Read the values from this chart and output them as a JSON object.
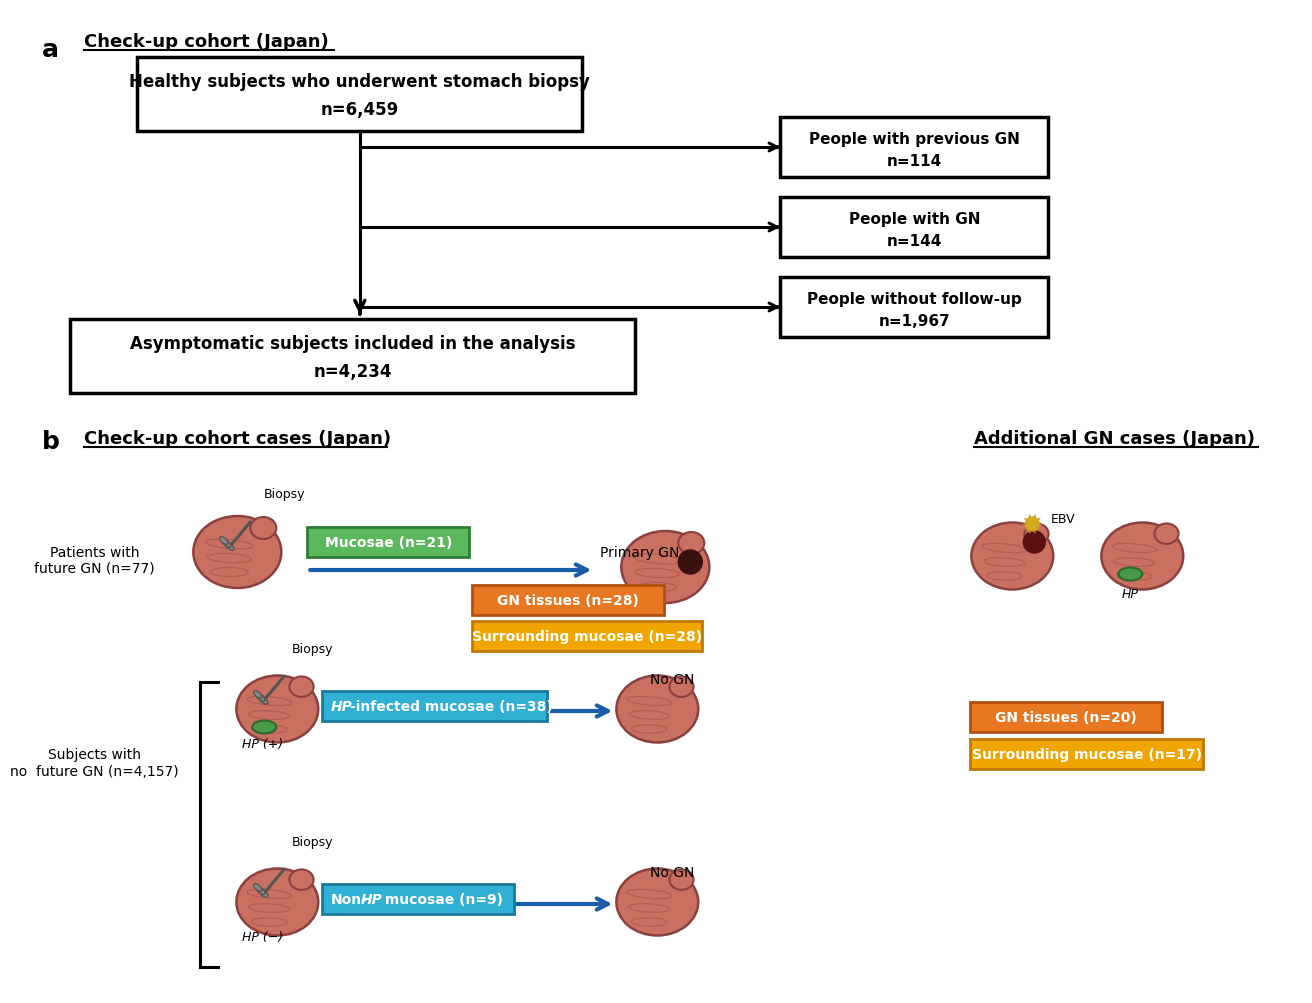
{
  "panel_a": {
    "label": "a",
    "title": "Check-up cohort (Japan)",
    "top_box_line1": "Healthy subjects who underwent stomach biopsy",
    "top_box_line2": "n=6,459",
    "bottom_box_line1": "Asymptomatic subjects included in the analysis",
    "bottom_box_line2": "n=4,234",
    "right_boxes": [
      [
        "People with previous GN",
        "n=114"
      ],
      [
        "People with GN",
        "n=144"
      ],
      [
        "People without follow-up",
        "n=1,967"
      ]
    ]
  },
  "panel_b": {
    "label": "b",
    "left_title": "Check-up cohort cases (Japan)",
    "right_title": "Additional GN cases (Japan)",
    "upper_label_line1": "Patients with",
    "upper_label_line2": "future GN (n=77)",
    "lower_label_line1": "Subjects with",
    "lower_label_line2": "no  future GN (n=4,157)",
    "mucosae_text": "Mucosae (n=21)",
    "mucosae_color": "#5cb85c",
    "mucosae_ec": "#2e7d32",
    "gn28_text": "GN tissues (n=28)",
    "gn28_color": "#e87722",
    "gn28_ec": "#b05010",
    "surr28_text": "Surrounding mucosae (n=28)",
    "surr28_color": "#f0a500",
    "surr28_ec": "#c07800",
    "hp_infected_text_pre": "HP",
    "hp_infected_text_post": "-infected mucosae (n=38)",
    "hp_infected_color": "#31b0d5",
    "hp_infected_ec": "#1a7a9a",
    "non_hp_text_pre": "Non-",
    "non_hp_text_it": "HP",
    "non_hp_text_post": " mucosae (n=9)",
    "non_hp_color": "#31b0d5",
    "non_hp_ec": "#1a7a9a",
    "gn20_text": "GN tissues (n=20)",
    "gn20_color": "#e87722",
    "gn20_ec": "#b05010",
    "surr17_text": "Surrounding mucosae (n=17)",
    "surr17_color": "#f0a500",
    "surr17_ec": "#c07800",
    "primary_gn": "Primary GN",
    "no_gn": "No GN",
    "ebv_label": "EBV",
    "hp_label": "HP",
    "hp_plus": "HP (+)",
    "hp_minus": "HP (−)",
    "biopsy": "Biopsy"
  },
  "stomach_color": "#c97060",
  "stomach_edge": "#8b4040",
  "arrow_color": "#1a5da8",
  "arrow_lw": 3.0,
  "black": "#000000",
  "white": "#ffffff"
}
